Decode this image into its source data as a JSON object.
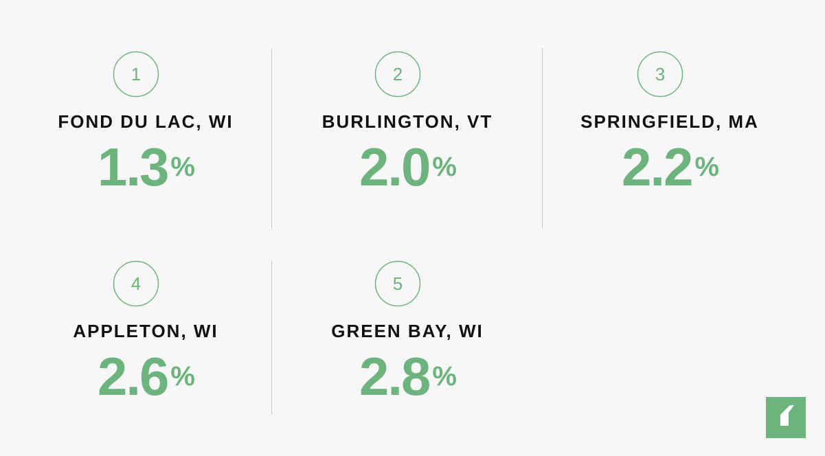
{
  "items": [
    {
      "rank": "1",
      "city": "FOND DU LAC, WI",
      "value": "1.3",
      "unit": "%"
    },
    {
      "rank": "2",
      "city": "BURLINGTON, VT",
      "value": "2.0",
      "unit": "%"
    },
    {
      "rank": "3",
      "city": "SPRINGFIELD, MA",
      "value": "2.2",
      "unit": "%"
    },
    {
      "rank": "4",
      "city": "APPLETON, WI",
      "value": "2.6",
      "unit": "%"
    },
    {
      "rank": "5",
      "city": "GREEN BAY, WI",
      "value": "2.8",
      "unit": "%"
    }
  ]
}
